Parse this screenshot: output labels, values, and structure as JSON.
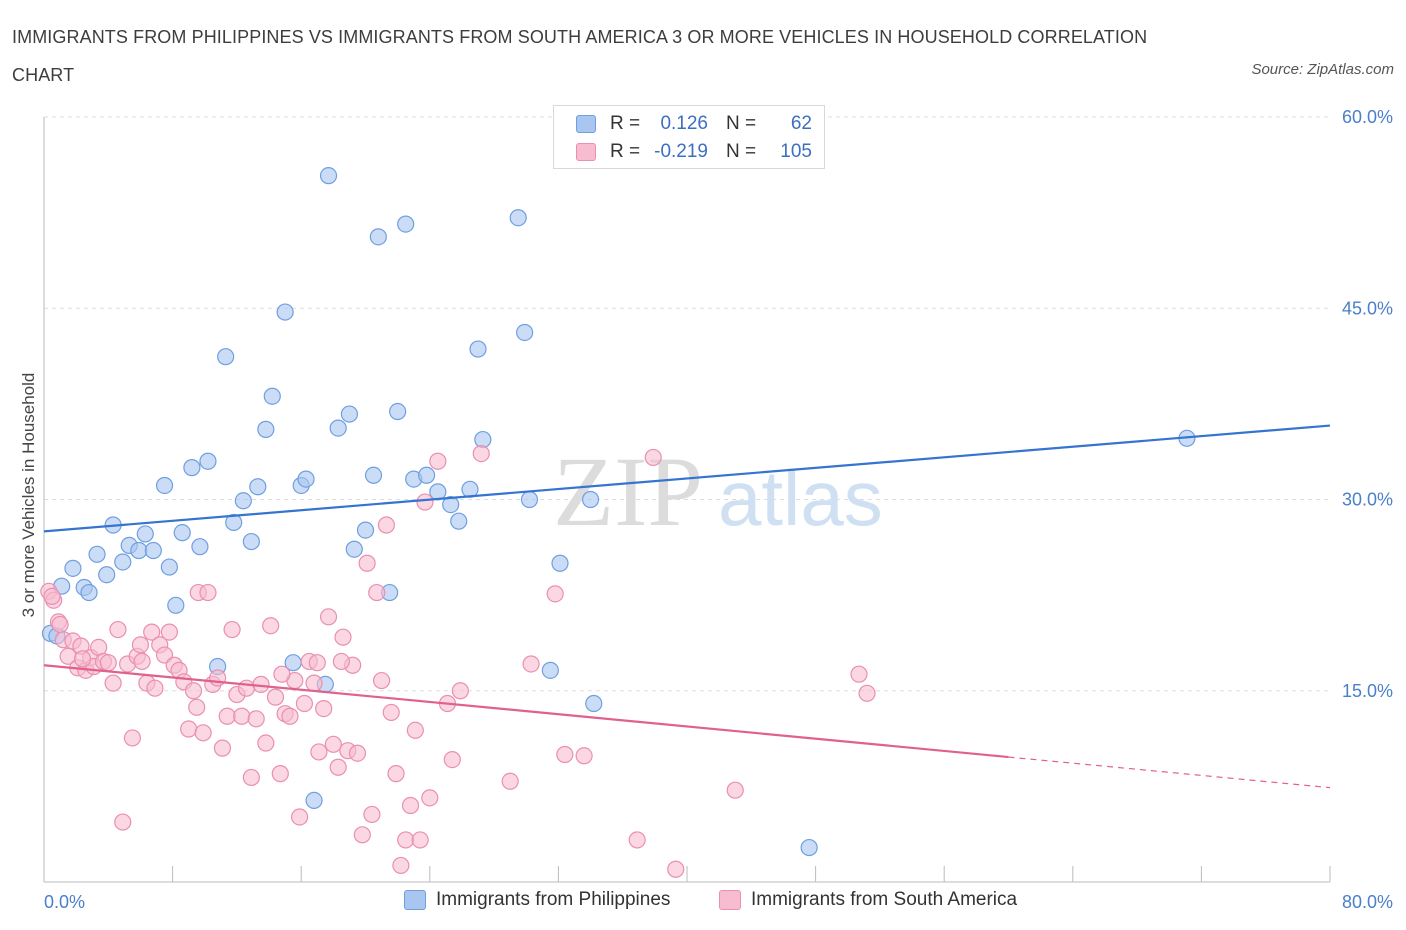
{
  "title": "IMMIGRANTS FROM PHILIPPINES VS IMMIGRANTS FROM SOUTH AMERICA 3 OR MORE VEHICLES IN HOUSEHOLD CORRELATION CHART",
  "source": "Source: ZipAtlas.com",
  "watermark": {
    "zip": "ZIP",
    "atlas": "atlas"
  },
  "legend": {
    "rows": [
      {
        "r_label": "R =",
        "r_value": "0.126",
        "n_label": "N =",
        "n_value": "62",
        "color": "#a9c6f0",
        "border": "#6f9fe0"
      },
      {
        "r_label": "R =",
        "r_value": "-0.219",
        "n_label": "N =",
        "n_value": "105",
        "color": "#f7bcd0",
        "border": "#ea8fb0"
      }
    ],
    "bottom": [
      {
        "label": "Immigrants from Philippines",
        "color": "#a9c6f0",
        "border": "#6f9fe0"
      },
      {
        "label": "Immigrants from South America",
        "color": "#f7bcd0",
        "border": "#ea8fb0"
      }
    ]
  },
  "chart_data": {
    "type": "scatter",
    "title": "IMMIGRANTS FROM PHILIPPINES VS IMMIGRANTS FROM SOUTH AMERICA 3 OR MORE VEHICLES IN HOUSEHOLD CORRELATION CHART",
    "xlabel": "",
    "ylabel": "3 or more Vehicles in Household",
    "xlim": [
      0,
      80
    ],
    "ylim": [
      0,
      60
    ],
    "x_tick_labels": [
      "0.0%",
      "80.0%"
    ],
    "y_ticks": [
      15,
      30,
      45,
      60
    ],
    "y_tick_labels": [
      "15.0%",
      "30.0%",
      "45.0%",
      "60.0%"
    ],
    "grid": "horizontal dashed",
    "series": [
      {
        "name": "Immigrants from Philippines",
        "color": "#6f9fe0",
        "fill": "#a9c6f0",
        "trend": {
          "x": [
            0,
            80
          ],
          "y": [
            27.5,
            35.8
          ],
          "dashed_from": null
        },
        "points": [
          [
            1.1,
            23.2
          ],
          [
            1.8,
            24.6
          ],
          [
            2.5,
            23.1
          ],
          [
            2.8,
            22.7
          ],
          [
            3.3,
            25.7
          ],
          [
            3.9,
            24.1
          ],
          [
            4.3,
            28.0
          ],
          [
            4.9,
            25.1
          ],
          [
            5.3,
            26.4
          ],
          [
            5.9,
            26.0
          ],
          [
            6.3,
            27.3
          ],
          [
            6.8,
            26.0
          ],
          [
            7.5,
            31.1
          ],
          [
            7.8,
            24.7
          ],
          [
            8.2,
            21.7
          ],
          [
            8.6,
            27.4
          ],
          [
            9.2,
            32.5
          ],
          [
            9.7,
            26.3
          ],
          [
            10.2,
            33.0
          ],
          [
            10.8,
            16.9
          ],
          [
            11.3,
            41.2
          ],
          [
            11.8,
            28.2
          ],
          [
            12.4,
            29.9
          ],
          [
            12.9,
            26.7
          ],
          [
            13.3,
            31.0
          ],
          [
            13.8,
            35.5
          ],
          [
            14.2,
            38.1
          ],
          [
            15.0,
            44.7
          ],
          [
            15.5,
            17.2
          ],
          [
            16.0,
            31.1
          ],
          [
            16.3,
            31.6
          ],
          [
            16.8,
            6.4
          ],
          [
            17.5,
            15.5
          ],
          [
            17.7,
            55.4
          ],
          [
            18.3,
            35.6
          ],
          [
            19.0,
            36.7
          ],
          [
            19.3,
            26.1
          ],
          [
            20.0,
            27.6
          ],
          [
            20.5,
            31.9
          ],
          [
            20.8,
            50.6
          ],
          [
            21.5,
            22.7
          ],
          [
            22.0,
            36.9
          ],
          [
            22.5,
            51.6
          ],
          [
            23.0,
            31.6
          ],
          [
            23.8,
            31.9
          ],
          [
            24.5,
            30.6
          ],
          [
            25.3,
            29.6
          ],
          [
            25.8,
            28.3
          ],
          [
            26.5,
            30.8
          ],
          [
            27.0,
            41.8
          ],
          [
            27.3,
            34.7
          ],
          [
            29.5,
            52.1
          ],
          [
            29.9,
            43.1
          ],
          [
            30.2,
            30.0
          ],
          [
            31.5,
            16.6
          ],
          [
            32.1,
            25.0
          ],
          [
            34.0,
            30.0
          ],
          [
            34.2,
            14.0
          ],
          [
            71.1,
            34.8
          ],
          [
            47.6,
            2.7
          ],
          [
            0.4,
            19.5
          ],
          [
            0.8,
            19.3
          ]
        ]
      },
      {
        "name": "Immigrants from South America",
        "color": "#ea8fb0",
        "fill": "#f7bcd0",
        "trend": {
          "x": [
            0,
            80
          ],
          "y": [
            17.0,
            7.4
          ],
          "dashed_from": 60
        },
        "points": [
          [
            0.3,
            22.8
          ],
          [
            0.6,
            22.1
          ],
          [
            0.9,
            20.4
          ],
          [
            1.2,
            19.0
          ],
          [
            1.5,
            17.7
          ],
          [
            1.8,
            18.9
          ],
          [
            2.1,
            16.8
          ],
          [
            2.3,
            18.5
          ],
          [
            2.6,
            16.6
          ],
          [
            2.9,
            17.6
          ],
          [
            3.1,
            16.9
          ],
          [
            3.4,
            18.4
          ],
          [
            3.7,
            17.3
          ],
          [
            4.0,
            17.2
          ],
          [
            4.3,
            15.6
          ],
          [
            4.6,
            19.8
          ],
          [
            4.9,
            4.7
          ],
          [
            5.2,
            17.1
          ],
          [
            5.5,
            11.3
          ],
          [
            5.8,
            17.7
          ],
          [
            6.1,
            17.3
          ],
          [
            6.4,
            15.6
          ],
          [
            6.7,
            19.6
          ],
          [
            6.9,
            15.2
          ],
          [
            7.2,
            18.6
          ],
          [
            7.5,
            17.8
          ],
          [
            7.8,
            19.6
          ],
          [
            8.1,
            17.0
          ],
          [
            8.4,
            16.6
          ],
          [
            8.7,
            15.7
          ],
          [
            9.0,
            12.0
          ],
          [
            9.3,
            15.0
          ],
          [
            9.6,
            22.7
          ],
          [
            9.9,
            11.7
          ],
          [
            10.2,
            22.7
          ],
          [
            10.5,
            15.5
          ],
          [
            10.8,
            16.0
          ],
          [
            11.1,
            10.5
          ],
          [
            11.4,
            13.0
          ],
          [
            11.7,
            19.8
          ],
          [
            12.0,
            14.7
          ],
          [
            12.3,
            13.0
          ],
          [
            12.6,
            15.2
          ],
          [
            12.9,
            8.2
          ],
          [
            13.2,
            12.8
          ],
          [
            13.5,
            15.5
          ],
          [
            13.8,
            10.9
          ],
          [
            14.1,
            20.1
          ],
          [
            14.4,
            14.5
          ],
          [
            14.7,
            8.5
          ],
          [
            15.0,
            13.2
          ],
          [
            15.3,
            13.0
          ],
          [
            15.6,
            15.8
          ],
          [
            15.9,
            5.1
          ],
          [
            16.2,
            14.0
          ],
          [
            16.5,
            17.3
          ],
          [
            16.8,
            15.6
          ],
          [
            17.1,
            10.2
          ],
          [
            17.4,
            13.6
          ],
          [
            17.7,
            20.8
          ],
          [
            18.0,
            10.8
          ],
          [
            18.3,
            9.0
          ],
          [
            18.6,
            19.2
          ],
          [
            18.9,
            10.3
          ],
          [
            19.2,
            17.0
          ],
          [
            19.5,
            10.1
          ],
          [
            19.8,
            3.7
          ],
          [
            20.1,
            25.0
          ],
          [
            20.4,
            5.3
          ],
          [
            20.7,
            22.7
          ],
          [
            21.0,
            15.8
          ],
          [
            21.3,
            28.0
          ],
          [
            21.6,
            13.3
          ],
          [
            21.9,
            8.5
          ],
          [
            22.2,
            1.3
          ],
          [
            22.5,
            3.3
          ],
          [
            22.8,
            6.0
          ],
          [
            23.1,
            11.9
          ],
          [
            23.4,
            3.3
          ],
          [
            23.7,
            29.8
          ],
          [
            24.0,
            6.6
          ],
          [
            24.5,
            33.0
          ],
          [
            25.1,
            14.0
          ],
          [
            25.4,
            9.6
          ],
          [
            25.9,
            15.0
          ],
          [
            27.2,
            33.6
          ],
          [
            29.0,
            7.9
          ],
          [
            30.3,
            17.1
          ],
          [
            31.8,
            22.6
          ],
          [
            32.4,
            10.0
          ],
          [
            33.6,
            9.9
          ],
          [
            36.9,
            3.3
          ],
          [
            37.9,
            33.3
          ],
          [
            39.3,
            1.0
          ],
          [
            43.0,
            7.2
          ],
          [
            50.7,
            16.3
          ],
          [
            51.2,
            14.8
          ],
          [
            0.5,
            22.4
          ],
          [
            1.0,
            20.2
          ],
          [
            2.4,
            17.5
          ],
          [
            6.0,
            18.6
          ],
          [
            9.5,
            13.7
          ],
          [
            14.8,
            16.3
          ],
          [
            17.0,
            17.2
          ],
          [
            18.5,
            17.3
          ]
        ]
      }
    ]
  }
}
